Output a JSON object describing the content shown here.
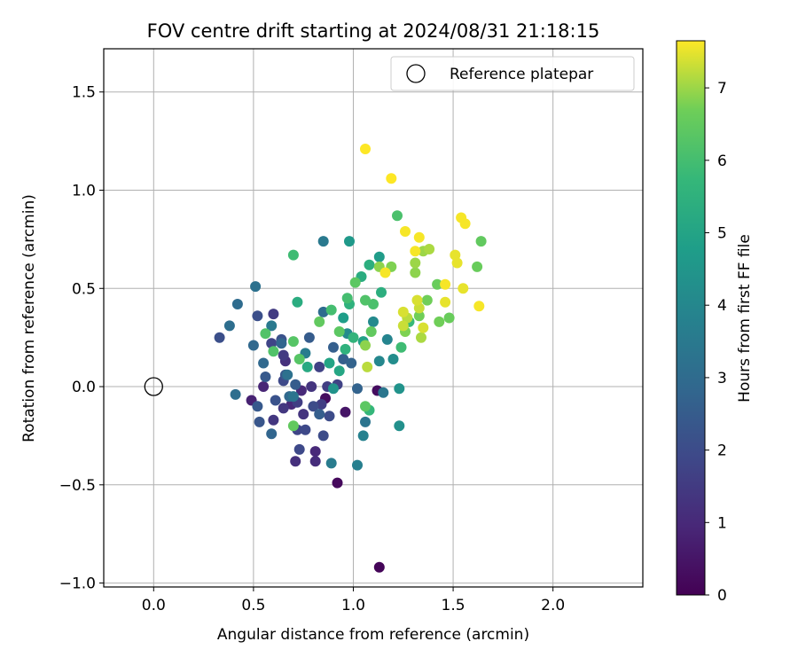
{
  "chart_data": {
    "type": "scatter",
    "title": "FOV centre drift starting at 2024/08/31 21:18:15",
    "xlabel": "Angular distance from reference (arcmin)",
    "ylabel": "Rotation from reference (arcmin)",
    "xlim": [
      -0.25,
      2.45
    ],
    "ylim": [
      -1.02,
      1.72
    ],
    "xticks": [
      0.0,
      0.5,
      1.0,
      1.5,
      2.0
    ],
    "xtick_labels": [
      "0.0",
      "0.5",
      "1.0",
      "1.5",
      "2.0"
    ],
    "yticks": [
      -1.0,
      -0.5,
      0.0,
      0.5,
      1.0,
      1.5
    ],
    "ytick_labels": [
      "−1.0",
      "−0.5",
      "0.0",
      "0.5",
      "1.0",
      "1.5"
    ],
    "grid": true,
    "legend": {
      "placement": "top-right",
      "entries": [
        "Reference platepar"
      ]
    },
    "reference_point": {
      "x": 0.0,
      "y": 0.0,
      "marker": "open-circle",
      "color": "#000000"
    },
    "colorbar": {
      "label": "Hours from first FF file",
      "range": [
        0,
        7.65
      ],
      "ticks": [
        0,
        1,
        2,
        3,
        4,
        5,
        6,
        7
      ],
      "tick_labels": [
        "0",
        "1",
        "2",
        "3",
        "4",
        "5",
        "6",
        "7"
      ],
      "colormap": "viridis"
    },
    "series": [
      {
        "columns": [
          "x",
          "y",
          "hours"
        ],
        "points": [
          [
            1.13,
            -0.92,
            0.1
          ],
          [
            0.92,
            -0.49,
            0.2
          ],
          [
            0.86,
            -0.06,
            0.3
          ],
          [
            1.12,
            -0.02,
            0.3
          ],
          [
            0.96,
            -0.13,
            0.5
          ],
          [
            0.49,
            -0.07,
            0.8
          ],
          [
            0.55,
            0.0,
            0.9
          ],
          [
            0.69,
            -0.09,
            1.0
          ],
          [
            0.74,
            -0.02,
            1.0
          ],
          [
            0.81,
            -0.33,
            1.0
          ],
          [
            0.81,
            -0.38,
            1.1
          ],
          [
            0.71,
            -0.38,
            1.2
          ],
          [
            0.66,
            0.13,
            1.2
          ],
          [
            0.75,
            -0.14,
            1.3
          ],
          [
            0.79,
            0.0,
            1.3
          ],
          [
            0.6,
            -0.17,
            1.4
          ],
          [
            0.65,
            -0.11,
            1.4
          ],
          [
            0.6,
            0.37,
            1.5
          ],
          [
            0.65,
            0.16,
            1.5
          ],
          [
            0.72,
            -0.08,
            1.6
          ],
          [
            0.84,
            -0.09,
            1.6
          ],
          [
            0.87,
            0.0,
            1.6
          ],
          [
            0.92,
            0.01,
            1.7
          ],
          [
            0.83,
            0.1,
            1.7
          ],
          [
            0.72,
            -0.22,
            1.8
          ],
          [
            0.59,
            0.22,
            1.8
          ],
          [
            0.65,
            0.03,
            1.9
          ],
          [
            0.73,
            -0.32,
            1.9
          ],
          [
            0.76,
            -0.22,
            1.9
          ],
          [
            0.8,
            -0.1,
            2.0
          ],
          [
            0.85,
            -0.25,
            2.0
          ],
          [
            0.88,
            -0.15,
            2.0
          ],
          [
            0.33,
            0.25,
            2.1
          ],
          [
            0.52,
            0.36,
            2.1
          ],
          [
            0.64,
            0.24,
            2.2
          ],
          [
            0.61,
            -0.07,
            2.2
          ],
          [
            0.53,
            -0.18,
            2.3
          ],
          [
            0.52,
            -0.1,
            2.4
          ],
          [
            0.56,
            0.05,
            2.4
          ],
          [
            0.66,
            0.06,
            2.4
          ],
          [
            0.71,
            0.01,
            2.5
          ],
          [
            0.78,
            0.25,
            2.5
          ],
          [
            0.83,
            -0.14,
            2.6
          ],
          [
            0.9,
            0.2,
            2.6
          ],
          [
            0.95,
            0.14,
            2.6
          ],
          [
            0.99,
            0.12,
            2.7
          ],
          [
            1.02,
            -0.01,
            2.7
          ],
          [
            0.59,
            -0.24,
            2.8
          ],
          [
            0.64,
            0.22,
            2.8
          ],
          [
            0.68,
            -0.05,
            2.9
          ],
          [
            0.55,
            0.12,
            2.9
          ],
          [
            0.5,
            0.21,
            2.9
          ],
          [
            0.85,
            0.38,
            3.0
          ],
          [
            0.42,
            0.42,
            3.0
          ],
          [
            0.38,
            0.31,
            3.1
          ],
          [
            0.41,
            -0.04,
            3.1
          ],
          [
            0.51,
            0.51,
            3.2
          ],
          [
            0.67,
            0.06,
            3.2
          ],
          [
            0.7,
            -0.05,
            3.3
          ],
          [
            1.06,
            -0.18,
            3.3
          ],
          [
            1.15,
            -0.03,
            3.4
          ],
          [
            0.85,
            0.74,
            3.5
          ],
          [
            0.59,
            0.31,
            3.5
          ],
          [
            0.76,
            0.17,
            3.6
          ],
          [
            0.89,
            -0.39,
            3.6
          ],
          [
            1.02,
            -0.4,
            3.7
          ],
          [
            1.05,
            -0.25,
            3.8
          ],
          [
            1.17,
            0.24,
            3.9
          ],
          [
            1.13,
            0.13,
            4.0
          ],
          [
            0.97,
            0.27,
            4.1
          ],
          [
            1.1,
            0.33,
            4.1
          ],
          [
            1.2,
            0.14,
            4.2
          ],
          [
            1.23,
            -0.2,
            4.3
          ],
          [
            1.23,
            -0.01,
            4.4
          ],
          [
            0.9,
            -0.01,
            4.4
          ],
          [
            0.98,
            0.74,
            4.6
          ],
          [
            1.13,
            0.66,
            4.7
          ],
          [
            0.95,
            0.35,
            4.8
          ],
          [
            1.05,
            0.23,
            4.9
          ],
          [
            0.88,
            0.12,
            5.0
          ],
          [
            0.93,
            0.08,
            5.1
          ],
          [
            0.77,
            0.1,
            5.2
          ],
          [
            0.72,
            0.43,
            5.3
          ],
          [
            1.04,
            0.56,
            5.3
          ],
          [
            1.14,
            0.48,
            5.4
          ],
          [
            1.08,
            0.62,
            5.4
          ],
          [
            0.98,
            0.42,
            5.5
          ],
          [
            0.96,
            0.19,
            5.5
          ],
          [
            1.0,
            0.25,
            5.6
          ],
          [
            1.08,
            -0.12,
            5.7
          ],
          [
            1.28,
            0.33,
            5.8
          ],
          [
            1.24,
            0.2,
            5.9
          ],
          [
            0.7,
            0.67,
            5.9
          ],
          [
            0.89,
            0.39,
            6.0
          ],
          [
            0.97,
            0.45,
            6.0
          ],
          [
            1.1,
            0.42,
            6.1
          ],
          [
            1.06,
            0.44,
            6.2
          ],
          [
            0.56,
            0.27,
            6.2
          ],
          [
            0.6,
            0.18,
            6.2
          ],
          [
            0.7,
            0.23,
            6.3
          ],
          [
            0.73,
            0.14,
            6.3
          ],
          [
            0.93,
            0.28,
            6.4
          ],
          [
            1.06,
            -0.1,
            6.4
          ],
          [
            0.7,
            -0.2,
            6.5
          ],
          [
            0.83,
            0.33,
            6.5
          ],
          [
            1.09,
            0.28,
            6.5
          ],
          [
            1.22,
            0.87,
            6.1
          ],
          [
            1.01,
            0.53,
            6.4
          ],
          [
            1.64,
            0.74,
            6.5
          ],
          [
            1.62,
            0.61,
            6.6
          ],
          [
            1.33,
            0.36,
            6.7
          ],
          [
            1.43,
            0.33,
            6.7
          ],
          [
            1.48,
            0.35,
            6.6
          ],
          [
            1.42,
            0.52,
            6.6
          ],
          [
            1.37,
            0.44,
            6.7
          ],
          [
            1.26,
            0.28,
            6.8
          ],
          [
            1.19,
            0.61,
            6.8
          ],
          [
            1.31,
            0.58,
            6.9
          ],
          [
            1.06,
            0.21,
            6.9
          ],
          [
            1.13,
            0.61,
            6.9
          ],
          [
            1.31,
            0.63,
            7.0
          ],
          [
            1.35,
            0.69,
            7.0
          ],
          [
            1.38,
            0.7,
            7.1
          ],
          [
            1.34,
            0.25,
            7.1
          ],
          [
            1.07,
            0.1,
            7.2
          ],
          [
            1.27,
            0.35,
            7.2
          ],
          [
            1.33,
            0.4,
            7.3
          ],
          [
            1.25,
            0.31,
            7.3
          ],
          [
            1.25,
            0.38,
            7.4
          ],
          [
            1.32,
            0.44,
            7.4
          ],
          [
            1.35,
            0.3,
            7.4
          ],
          [
            1.46,
            0.43,
            7.5
          ],
          [
            1.51,
            0.67,
            7.5
          ],
          [
            1.52,
            0.63,
            7.5
          ],
          [
            1.55,
            0.5,
            7.5
          ],
          [
            1.54,
            0.86,
            7.6
          ],
          [
            1.56,
            0.83,
            7.6
          ],
          [
            1.46,
            0.52,
            7.6
          ],
          [
            1.63,
            0.41,
            7.6
          ],
          [
            1.33,
            0.76,
            7.6
          ],
          [
            1.26,
            0.79,
            7.6
          ],
          [
            1.31,
            0.69,
            7.6
          ],
          [
            1.16,
            0.58,
            7.6
          ],
          [
            1.19,
            1.06,
            7.65
          ],
          [
            1.06,
            1.21,
            7.65
          ]
        ]
      }
    ]
  }
}
